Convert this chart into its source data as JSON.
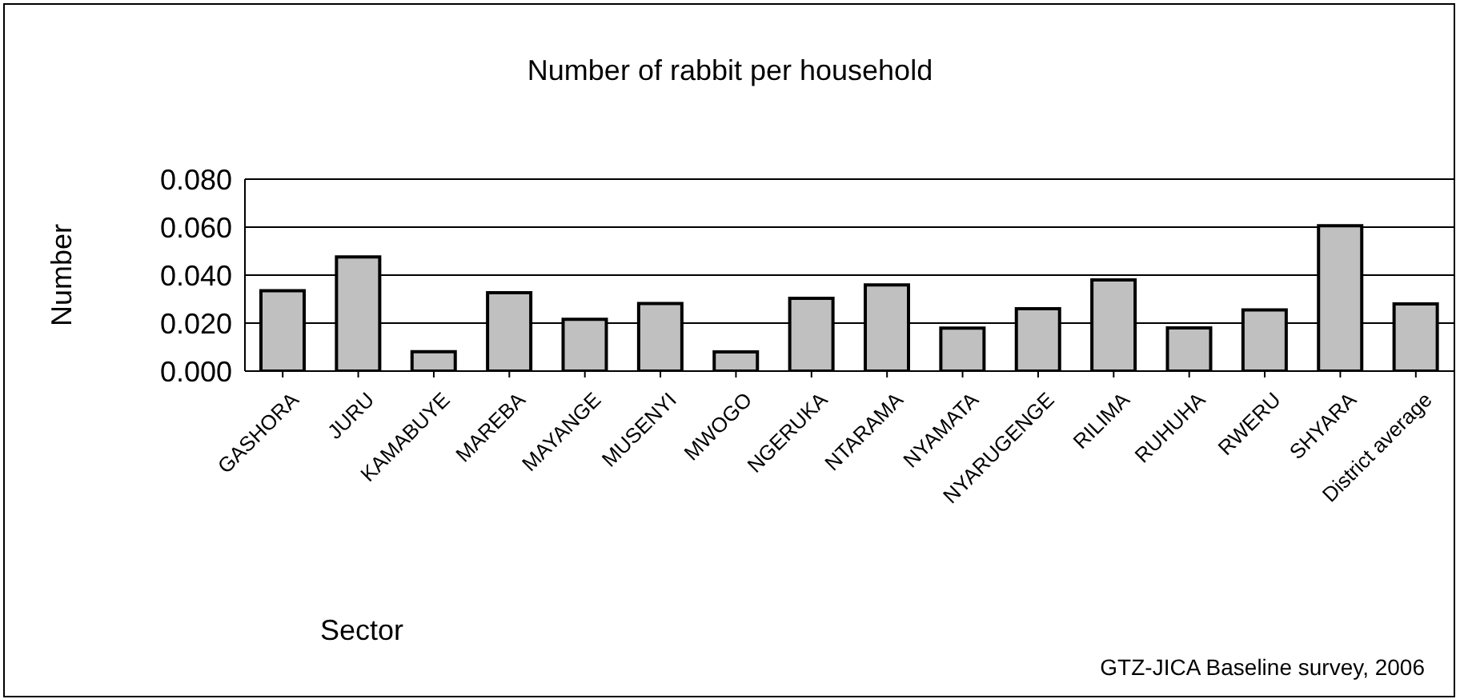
{
  "chart_data": {
    "type": "bar",
    "title": "Number of rabbit per household",
    "xlabel": "Sector",
    "ylabel": "Number",
    "categories": [
      "GASHORA",
      "JURU",
      "KAMABUYE",
      "MAREBA",
      "MAYANGE",
      "MUSENYI",
      "MWOGO",
      "NGERUKA",
      "NTARAMA",
      "NYAMATA",
      "NYARUGENGE",
      "RILIMA",
      "RUHUHA",
      "RWERU",
      "SHYARA",
      "District average"
    ],
    "values": [
      0.0335,
      0.0476,
      0.0081,
      0.0327,
      0.0216,
      0.0282,
      0.008,
      0.0303,
      0.0359,
      0.0179,
      0.026,
      0.038,
      0.018,
      0.0255,
      0.0606,
      0.028
    ],
    "color": "#c0c0c0",
    "ylim": [
      0,
      0.08
    ],
    "yticks": [
      {
        "value": 0,
        "label": "0.000"
      },
      {
        "value": 0.02,
        "label": "0.020"
      },
      {
        "value": 0.04,
        "label": "0.040"
      },
      {
        "value": 0.06,
        "label": "0.060"
      },
      {
        "value": 0.08,
        "label": "0.080"
      }
    ],
    "grid": "y",
    "legend": false,
    "annotations": [
      "GTZ-JICA Baseline survey, 2006"
    ]
  }
}
